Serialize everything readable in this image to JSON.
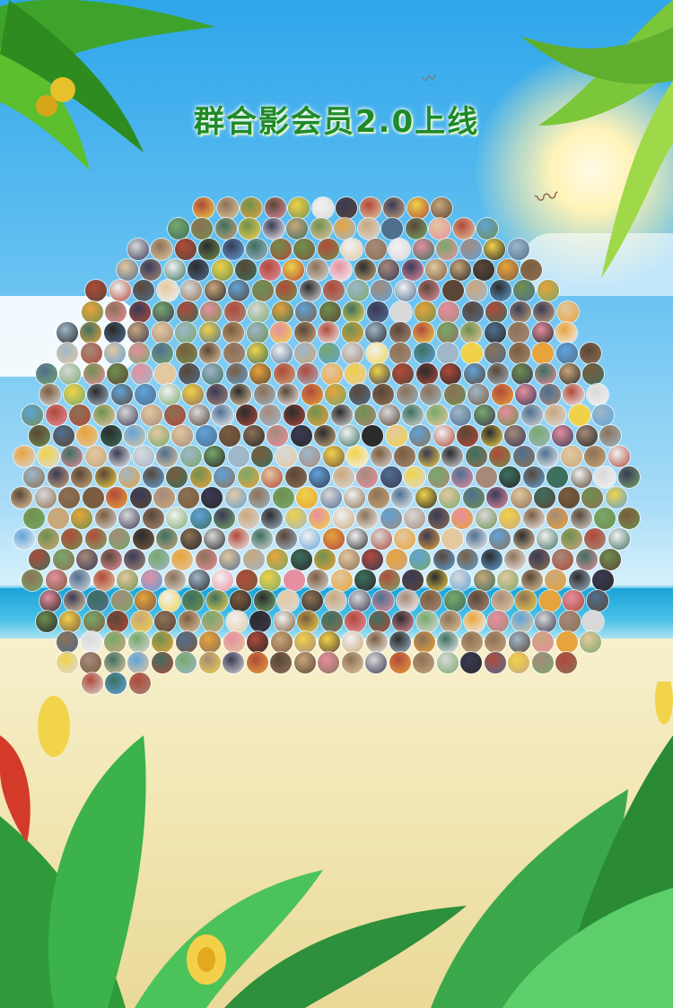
{
  "poster": {
    "title": "群合影会员2.0上线",
    "title_color": "#1f8a2a"
  },
  "avatars": {
    "count": 520,
    "colors": [
      "#2b2b2b",
      "#5a4636",
      "#8c7156",
      "#c9a77c",
      "#e3c8a0",
      "#f2f2f2",
      "#9fb7c9",
      "#4f6f8f",
      "#6f8f4f",
      "#b04a3a",
      "#e7a33c",
      "#f0d24a",
      "#5fa3d8",
      "#3a3a55",
      "#a58a7a",
      "#d9d9d9",
      "#7b5c3e",
      "#e58fa0",
      "#78a86b",
      "#3d6f5f"
    ]
  },
  "icons": [
    "seagull-icon",
    "palm-leaf-icon",
    "tropical-leaf-icon",
    "flower-icon"
  ]
}
